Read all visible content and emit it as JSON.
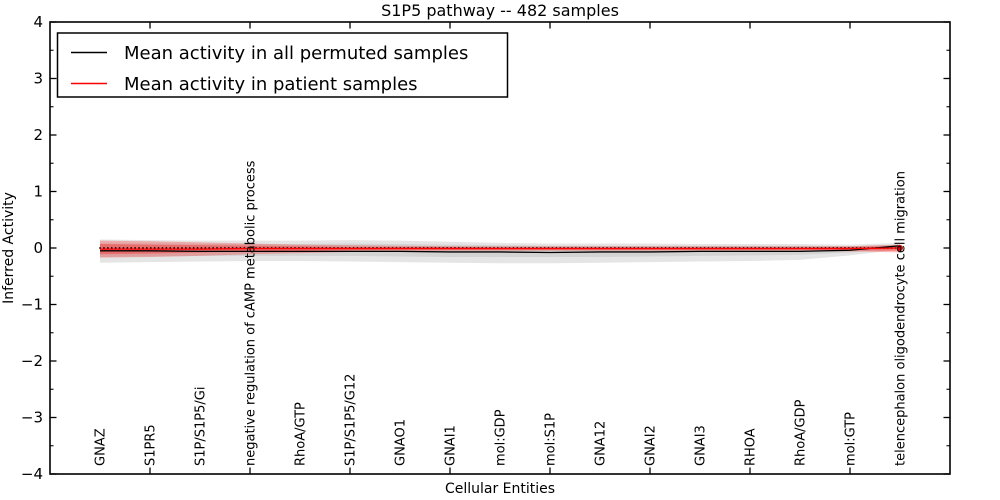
{
  "title": "S1P5 pathway -- 482 samples",
  "legend": {
    "entries": [
      {
        "label": "Mean activity in all permuted samples",
        "color": "#000000"
      },
      {
        "label": "Mean activity in patient samples",
        "color": "#ff0000"
      }
    ],
    "position": "upper left"
  },
  "chart_data": {
    "type": "line",
    "title": "S1P5 pathway -- 482 samples",
    "xlabel": "Cellular Entities",
    "ylabel": "Inferred Activity",
    "ylim": [
      -4,
      4
    ],
    "y_major_tick_values": [
      4,
      3,
      2,
      1,
      0,
      -1,
      -2,
      -3,
      -4
    ],
    "y_major_ticks": [
      "4",
      "3",
      "2",
      "1",
      "0",
      "−1",
      "−2",
      "−3",
      "−4"
    ],
    "y_minor_tick_values": [
      3.5,
      2.5,
      1.5,
      0.5,
      -0.5,
      -1.5,
      -2.5,
      -3.5
    ],
    "x_major_tick_units": [
      2,
      4,
      6,
      8,
      10,
      12,
      14,
      16
    ],
    "grid": false,
    "categories": [
      "GNAZ",
      "S1PR5",
      "S1P/S1P5/Gi",
      "negative regulation of cAMP metabolic process",
      "RhoA/GTP",
      "S1P/S1P5/G12",
      "GNAO1",
      "GNAI1",
      "mol:GDP",
      "mol:S1P",
      "GNA12",
      "GNAI2",
      "GNAI3",
      "RHOA",
      "RhoA/GDP",
      "mol:GTP",
      "telencephalon oligodendrocyte cell migration"
    ],
    "series": [
      {
        "name": "Mean activity in all permuted samples",
        "color": "#000000",
        "width": 1.3,
        "values": [
          -0.05,
          -0.05,
          -0.06,
          -0.06,
          -0.06,
          -0.06,
          -0.06,
          -0.07,
          -0.07,
          -0.08,
          -0.07,
          -0.07,
          -0.06,
          -0.06,
          -0.06,
          -0.04,
          0.04
        ]
      },
      {
        "name": "Mean activity in patient samples",
        "color": "#ff0000",
        "width": 1.3,
        "values": [
          -0.02,
          -0.02,
          -0.02,
          -0.01,
          -0.01,
          -0.01,
          -0.01,
          -0.01,
          -0.01,
          -0.01,
          -0.01,
          -0.01,
          -0.01,
          -0.01,
          -0.01,
          -0.01,
          0.0
        ]
      }
    ],
    "bands": [
      {
        "name": "permuted-band-outer",
        "color": "#aaaaaa",
        "opacity": 0.3,
        "upper": [
          0.15,
          0.14,
          0.13,
          0.13,
          0.13,
          0.14,
          0.13,
          0.11,
          0.09,
          0.08,
          0.08,
          0.08,
          0.07,
          0.07,
          0.07,
          0.06,
          0.09
        ],
        "lower": [
          -0.26,
          -0.25,
          -0.24,
          -0.23,
          -0.23,
          -0.24,
          -0.25,
          -0.26,
          -0.27,
          -0.27,
          -0.26,
          -0.25,
          -0.24,
          -0.23,
          -0.21,
          -0.13,
          -0.03
        ]
      },
      {
        "name": "permuted-band-inner",
        "color": "#aaaaaa",
        "opacity": 0.3,
        "upper": [
          0.08,
          0.08,
          0.07,
          0.07,
          0.07,
          0.08,
          0.07,
          0.06,
          0.05,
          0.04,
          0.04,
          0.04,
          0.04,
          0.04,
          0.04,
          0.03,
          0.06
        ],
        "lower": [
          -0.16,
          -0.15,
          -0.14,
          -0.14,
          -0.14,
          -0.14,
          -0.15,
          -0.16,
          -0.16,
          -0.16,
          -0.16,
          -0.15,
          -0.14,
          -0.13,
          -0.12,
          -0.08,
          0.0
        ]
      },
      {
        "name": "patient-band-outer",
        "color": "#ff0000",
        "opacity": 0.25,
        "upper": [
          0.13,
          0.12,
          0.1,
          0.08,
          0.06,
          0.05,
          0.04,
          0.03,
          0.03,
          0.03,
          0.03,
          0.03,
          0.03,
          0.03,
          0.03,
          0.03,
          0.06
        ],
        "lower": [
          -0.17,
          -0.16,
          -0.14,
          -0.11,
          -0.09,
          -0.07,
          -0.06,
          -0.05,
          -0.05,
          -0.05,
          -0.05,
          -0.05,
          -0.05,
          -0.05,
          -0.05,
          -0.06,
          -0.08
        ]
      },
      {
        "name": "patient-band-inner",
        "color": "#ff0000",
        "opacity": 0.3,
        "upper": [
          0.07,
          0.06,
          0.05,
          0.04,
          0.03,
          0.02,
          0.02,
          0.02,
          0.01,
          0.01,
          0.01,
          0.01,
          0.01,
          0.01,
          0.01,
          0.02,
          0.03
        ],
        "lower": [
          -0.11,
          -0.1,
          -0.08,
          -0.06,
          -0.05,
          -0.04,
          -0.03,
          -0.03,
          -0.03,
          -0.03,
          -0.03,
          -0.03,
          -0.03,
          -0.03,
          -0.03,
          -0.04,
          -0.05
        ]
      }
    ],
    "reference_line": {
      "y": 0,
      "style": "dotted",
      "color": "#000000"
    },
    "end_marker": {
      "series": "Mean activity in patient samples",
      "index": 16,
      "color": "#dd0000",
      "radius": 3
    },
    "legend_position": "upper left"
  }
}
